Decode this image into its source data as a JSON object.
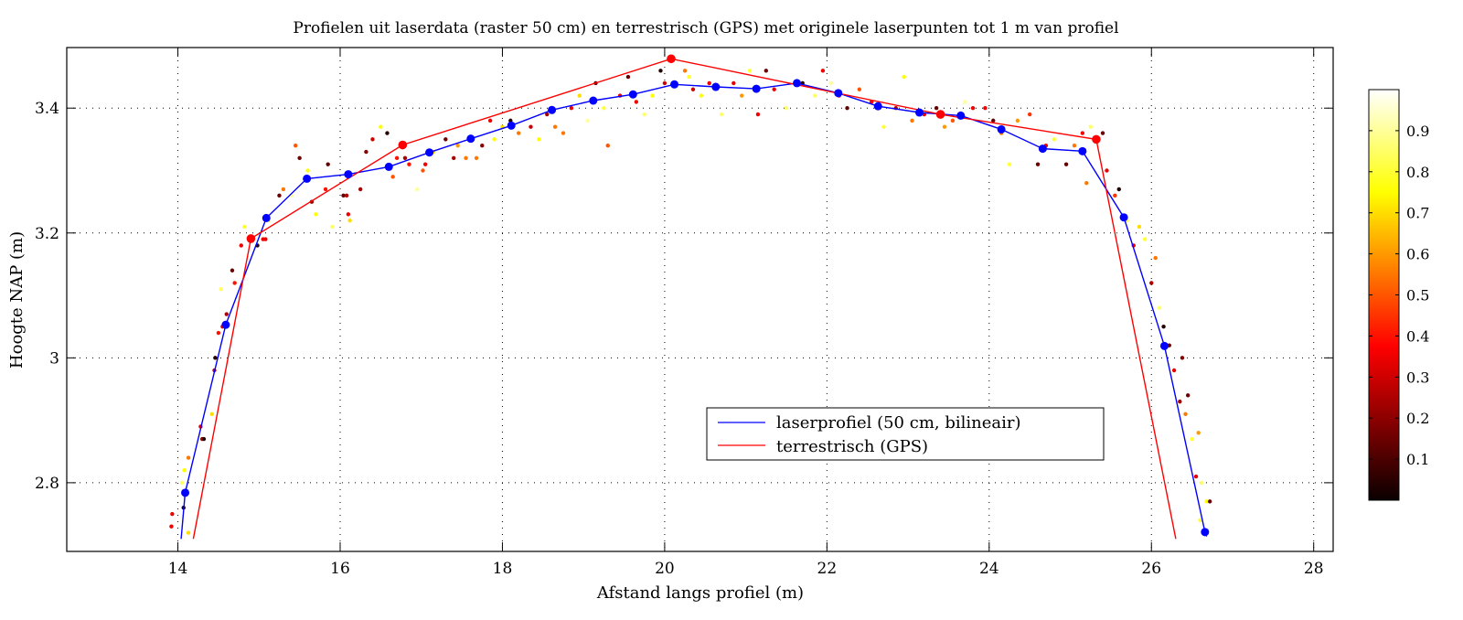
{
  "chart_data": {
    "type": "line",
    "title": "Profielen uit laserdata (raster 50 cm) en terrestrisch (GPS) met originele laserpunten tot 1 m van profiel",
    "xlabel": "Afstand langs profiel (m)",
    "ylabel": "Hoogte NAP (m)",
    "xlim": [
      12.63,
      28.24
    ],
    "ylim": [
      2.69,
      3.497
    ],
    "xticks": [
      14,
      16,
      18,
      20,
      22,
      24,
      26,
      28
    ],
    "xtick_labels": [
      "14",
      "16",
      "18",
      "20",
      "22",
      "24",
      "26",
      "28"
    ],
    "yticks": [
      2.8,
      3.0,
      3.2,
      3.4
    ],
    "ytick_labels": [
      "2.8",
      "3",
      "3.2",
      "3.4"
    ],
    "grid": true,
    "legend_position": "lower-center-right",
    "series": [
      {
        "name": "laserprofiel (50 cm, bilineair)",
        "color": "#0000ff",
        "line_start": [
          14.04,
          2.71
        ],
        "x": [
          14.09,
          14.59,
          15.09,
          15.59,
          16.1,
          16.6,
          17.1,
          17.61,
          18.11,
          18.61,
          19.12,
          19.61,
          20.12,
          20.63,
          21.13,
          21.63,
          22.14,
          22.63,
          23.14,
          23.65,
          24.15,
          24.66,
          25.15,
          25.66,
          26.16,
          26.66
        ],
        "y": [
          2.784,
          3.053,
          3.224,
          3.287,
          3.294,
          3.306,
          3.329,
          3.351,
          3.372,
          3.397,
          3.412,
          3.422,
          3.438,
          3.434,
          3.431,
          3.44,
          3.424,
          3.403,
          3.393,
          3.388,
          3.366,
          3.335,
          3.331,
          3.225,
          3.019,
          2.721
        ],
        "line_end": [
          26.68,
          2.714
        ]
      },
      {
        "name": "terrestrisch (GPS)",
        "color": "#ff0000",
        "line_start": [
          14.19,
          2.71
        ],
        "x": [
          14.9,
          16.77,
          20.08,
          23.4,
          25.32
        ],
        "y": [
          3.191,
          3.341,
          3.479,
          3.39,
          3.35
        ],
        "line_end": [
          26.3,
          2.71
        ]
      }
    ],
    "scatter": {
      "name": "originele laserpunten",
      "colormap": "hot",
      "clim": [
        0,
        1
      ],
      "points": [
        [
          13.92,
          2.73,
          0.35
        ],
        [
          13.93,
          2.75,
          0.35
        ],
        [
          14.07,
          2.76,
          0.05
        ],
        [
          14.05,
          2.8,
          0.85
        ],
        [
          14.08,
          2.82,
          0.75
        ],
        [
          14.13,
          2.84,
          0.55
        ],
        [
          14.13,
          2.72,
          0.7
        ],
        [
          14.3,
          2.87,
          0.25
        ],
        [
          14.28,
          2.89,
          0.35
        ],
        [
          14.32,
          2.87,
          0.05
        ],
        [
          14.42,
          2.91,
          0.7
        ],
        [
          14.45,
          2.98,
          0.3
        ],
        [
          14.46,
          3.0,
          0.05
        ],
        [
          14.5,
          3.04,
          0.4
        ],
        [
          14.55,
          3.05,
          0.35
        ],
        [
          14.6,
          3.07,
          0.25
        ],
        [
          14.53,
          3.11,
          0.85
        ],
        [
          14.67,
          3.14,
          0.15
        ],
        [
          14.7,
          3.12,
          0.4
        ],
        [
          14.78,
          3.18,
          0.35
        ],
        [
          14.82,
          3.21,
          0.8
        ],
        [
          14.88,
          3.19,
          0.7
        ],
        [
          14.98,
          3.18,
          0.05
        ],
        [
          15.05,
          3.19,
          0.35
        ],
        [
          15.08,
          3.19,
          0.35
        ],
        [
          15.12,
          3.22,
          0.85
        ],
        [
          15.25,
          3.26,
          0.15
        ],
        [
          15.3,
          3.27,
          0.55
        ],
        [
          15.4,
          3.26,
          0.9
        ],
        [
          15.45,
          3.34,
          0.5
        ],
        [
          15.5,
          3.32,
          0.15
        ],
        [
          15.6,
          3.3,
          0.75
        ],
        [
          15.65,
          3.25,
          0.2
        ],
        [
          15.7,
          3.23,
          0.75
        ],
        [
          15.82,
          3.27,
          0.4
        ],
        [
          15.85,
          3.31,
          0.15
        ],
        [
          15.9,
          3.21,
          0.85
        ],
        [
          16.04,
          3.26,
          0.15
        ],
        [
          16.08,
          3.26,
          0.25
        ],
        [
          16.1,
          3.23,
          0.35
        ],
        [
          16.12,
          3.22,
          0.7
        ],
        [
          16.25,
          3.27,
          0.25
        ],
        [
          16.32,
          3.33,
          0.2
        ],
        [
          16.4,
          3.35,
          0.3
        ],
        [
          16.5,
          3.37,
          0.75
        ],
        [
          16.58,
          3.36,
          0.05
        ],
        [
          16.65,
          3.29,
          0.5
        ],
        [
          16.7,
          3.32,
          0.4
        ],
        [
          16.8,
          3.32,
          0.25
        ],
        [
          16.85,
          3.31,
          0.4
        ],
        [
          16.95,
          3.27,
          0.9
        ],
        [
          17.02,
          3.3,
          0.5
        ],
        [
          17.05,
          3.31,
          0.35
        ],
        [
          17.15,
          3.33,
          0.7
        ],
        [
          17.3,
          3.35,
          0.15
        ],
        [
          17.4,
          3.32,
          0.25
        ],
        [
          17.45,
          3.34,
          0.6
        ],
        [
          17.55,
          3.32,
          0.55
        ],
        [
          17.68,
          3.32,
          0.55
        ],
        [
          17.75,
          3.34,
          0.2
        ],
        [
          17.85,
          3.38,
          0.35
        ],
        [
          17.9,
          3.35,
          0.75
        ],
        [
          18.0,
          3.37,
          0.7
        ],
        [
          18.1,
          3.38,
          0.05
        ],
        [
          18.2,
          3.36,
          0.55
        ],
        [
          18.35,
          3.37,
          0.3
        ],
        [
          18.45,
          3.35,
          0.75
        ],
        [
          18.55,
          3.39,
          0.25
        ],
        [
          18.65,
          3.37,
          0.55
        ],
        [
          18.75,
          3.36,
          0.55
        ],
        [
          18.85,
          3.4,
          0.35
        ],
        [
          18.95,
          3.42,
          0.7
        ],
        [
          19.05,
          3.38,
          0.9
        ],
        [
          19.15,
          3.44,
          0.15
        ],
        [
          19.25,
          3.4,
          0.8
        ],
        [
          19.3,
          3.34,
          0.5
        ],
        [
          19.45,
          3.42,
          0.35
        ],
        [
          19.55,
          3.45,
          0.15
        ],
        [
          19.65,
          3.41,
          0.35
        ],
        [
          19.75,
          3.39,
          0.85
        ],
        [
          19.85,
          3.42,
          0.75
        ],
        [
          19.95,
          3.46,
          0.05
        ],
        [
          20.0,
          3.44,
          0.3
        ],
        [
          20.1,
          3.44,
          0.35
        ],
        [
          20.25,
          3.46,
          0.55
        ],
        [
          20.3,
          3.45,
          0.8
        ],
        [
          20.35,
          3.43,
          0.3
        ],
        [
          20.45,
          3.42,
          0.75
        ],
        [
          20.55,
          3.44,
          0.35
        ],
        [
          20.7,
          3.39,
          0.85
        ],
        [
          20.85,
          3.44,
          0.35
        ],
        [
          20.95,
          3.42,
          0.6
        ],
        [
          21.05,
          3.46,
          0.8
        ],
        [
          21.15,
          3.39,
          0.35
        ],
        [
          21.25,
          3.46,
          0.15
        ],
        [
          21.35,
          3.43,
          0.35
        ],
        [
          21.5,
          3.4,
          0.85
        ],
        [
          21.62,
          3.44,
          0.55
        ],
        [
          21.7,
          3.44,
          0.05
        ],
        [
          21.85,
          3.42,
          0.85
        ],
        [
          21.95,
          3.46,
          0.35
        ],
        [
          22.05,
          3.44,
          0.9
        ],
        [
          22.15,
          3.42,
          0.4
        ],
        [
          22.25,
          3.4,
          0.15
        ],
        [
          22.4,
          3.43,
          0.5
        ],
        [
          22.55,
          3.41,
          0.35
        ],
        [
          22.7,
          3.37,
          0.8
        ],
        [
          22.85,
          3.4,
          0.25
        ],
        [
          22.95,
          3.45,
          0.75
        ],
        [
          23.05,
          3.38,
          0.55
        ],
        [
          23.2,
          3.39,
          0.35
        ],
        [
          23.35,
          3.4,
          0.15
        ],
        [
          23.45,
          3.37,
          0.6
        ],
        [
          23.55,
          3.38,
          0.5
        ],
        [
          23.7,
          3.41,
          0.9
        ],
        [
          23.8,
          3.4,
          0.35
        ],
        [
          23.95,
          3.4,
          0.35
        ],
        [
          24.05,
          3.38,
          0.15
        ],
        [
          24.15,
          3.36,
          0.55
        ],
        [
          24.25,
          3.31,
          0.8
        ],
        [
          24.35,
          3.38,
          0.6
        ],
        [
          24.5,
          3.39,
          0.45
        ],
        [
          24.6,
          3.31,
          0.15
        ],
        [
          24.7,
          3.34,
          0.35
        ],
        [
          24.8,
          3.35,
          0.8
        ],
        [
          24.95,
          3.31,
          0.15
        ],
        [
          25.05,
          3.34,
          0.55
        ],
        [
          25.15,
          3.36,
          0.35
        ],
        [
          25.2,
          3.28,
          0.55
        ],
        [
          25.25,
          3.37,
          0.85
        ],
        [
          25.4,
          3.36,
          0.15
        ],
        [
          25.45,
          3.3,
          0.35
        ],
        [
          25.55,
          3.26,
          0.45
        ],
        [
          25.6,
          3.27,
          0.05
        ],
        [
          25.7,
          3.22,
          0.85
        ],
        [
          25.78,
          3.18,
          0.35
        ],
        [
          25.85,
          3.21,
          0.7
        ],
        [
          25.92,
          3.19,
          0.8
        ],
        [
          26.0,
          3.12,
          0.25
        ],
        [
          26.05,
          3.16,
          0.55
        ],
        [
          26.1,
          3.08,
          0.85
        ],
        [
          26.15,
          3.05,
          0.05
        ],
        [
          26.22,
          3.02,
          0.15
        ],
        [
          26.28,
          2.98,
          0.35
        ],
        [
          26.35,
          2.93,
          0.25
        ],
        [
          26.42,
          2.91,
          0.55
        ],
        [
          26.5,
          2.87,
          0.8
        ],
        [
          26.55,
          2.81,
          0.35
        ],
        [
          26.58,
          2.88,
          0.6
        ],
        [
          26.62,
          2.8,
          0.85
        ],
        [
          26.68,
          2.77,
          0.75
        ],
        [
          26.72,
          2.77,
          0.15
        ],
        [
          26.6,
          2.74,
          0.8
        ],
        [
          26.45,
          2.94,
          0.15
        ],
        [
          26.38,
          3.0,
          0.2
        ]
      ]
    },
    "colorbar": {
      "colormap": "hot",
      "range": [
        0,
        1
      ],
      "ticks": [
        0.1,
        0.2,
        0.3,
        0.4,
        0.5,
        0.6,
        0.7,
        0.8,
        0.9
      ],
      "tick_labels": [
        "0.1",
        "0.2",
        "0.3",
        "0.4",
        "0.5",
        "0.6",
        "0.7",
        "0.8",
        "0.9"
      ]
    }
  }
}
